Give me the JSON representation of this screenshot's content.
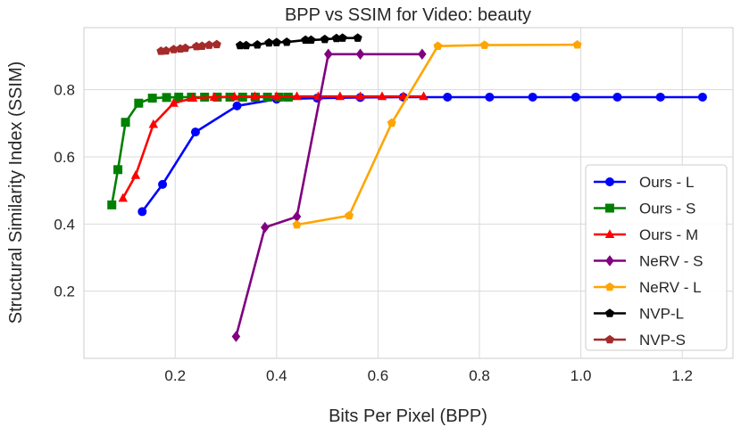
{
  "chart_data": {
    "type": "line",
    "title": "BPP vs SSIM for Video: beauty",
    "xlabel": "Bits Per Pixel (BPP)",
    "ylabel": "Structural Similarity Index (SSIM)",
    "xlim": [
      0.02,
      1.3
    ],
    "ylim": [
      0.0,
      0.985
    ],
    "xticks": [
      0.2,
      0.4,
      0.6,
      0.8,
      1.0,
      1.2
    ],
    "yticks": [
      0.2,
      0.4,
      0.6,
      0.8
    ],
    "xtick_labels": [
      "0.2",
      "0.4",
      "0.6",
      "0.8",
      "1.0",
      "1.2"
    ],
    "ytick_labels": [
      "0.2",
      "0.4",
      "0.6",
      "0.8"
    ],
    "grid": true,
    "legend_position": "right",
    "series": [
      {
        "name": "Ours - L",
        "color": "#0000ff",
        "marker": "circle",
        "x": [
          0.135,
          0.175,
          0.24,
          0.322,
          0.4,
          0.48,
          0.565,
          0.65,
          0.737,
          0.82,
          0.905,
          0.99,
          1.072,
          1.157,
          1.24
        ],
        "y": [
          0.437,
          0.518,
          0.674,
          0.752,
          0.772,
          0.775,
          0.777,
          0.778,
          0.778,
          0.778,
          0.778,
          0.778,
          0.778,
          0.778,
          0.778
        ]
      },
      {
        "name": "Ours - S",
        "color": "#008000",
        "marker": "square",
        "x": [
          0.075,
          0.087,
          0.102,
          0.128,
          0.155,
          0.183,
          0.207,
          0.232,
          0.258,
          0.283,
          0.308,
          0.333,
          0.358,
          0.382,
          0.405,
          0.423
        ],
        "y": [
          0.457,
          0.562,
          0.703,
          0.76,
          0.775,
          0.777,
          0.778,
          0.778,
          0.778,
          0.778,
          0.778,
          0.778,
          0.778,
          0.778,
          0.778,
          0.778
        ]
      },
      {
        "name": "Ours - M",
        "color": "#ff0000",
        "marker": "triangle",
        "x": [
          0.097,
          0.122,
          0.157,
          0.197,
          0.235,
          0.277,
          0.317,
          0.357,
          0.4,
          0.44,
          0.482,
          0.525,
          0.565,
          0.608,
          0.65,
          0.69
        ],
        "y": [
          0.477,
          0.545,
          0.697,
          0.76,
          0.775,
          0.778,
          0.779,
          0.78,
          0.78,
          0.78,
          0.78,
          0.78,
          0.78,
          0.78,
          0.78,
          0.78
        ]
      },
      {
        "name": "NeRV - S",
        "color": "#800080",
        "marker": "diamond",
        "x": [
          0.32,
          0.377,
          0.44,
          0.502,
          0.565,
          0.687
        ],
        "y": [
          0.065,
          0.39,
          0.422,
          0.906,
          0.906,
          0.906
        ]
      },
      {
        "name": "NeRV - L",
        "color": "#ffa500",
        "marker": "pentagon",
        "x": [
          0.44,
          0.543,
          0.627,
          0.718,
          0.81,
          0.993
        ],
        "y": [
          0.398,
          0.425,
          0.701,
          0.93,
          0.933,
          0.934
        ]
      },
      {
        "name": "NVP-L",
        "color": "#000000",
        "marker": "pentagon",
        "x": [
          0.328,
          0.34,
          0.362,
          0.385,
          0.4,
          0.42,
          0.457,
          0.468,
          0.495,
          0.518,
          0.53,
          0.56
        ],
        "y": [
          0.932,
          0.932,
          0.934,
          0.94,
          0.941,
          0.942,
          0.948,
          0.948,
          0.95,
          0.953,
          0.954,
          0.954
        ]
      },
      {
        "name": "NVP-S",
        "color": "#a52a2a",
        "marker": "pentagon",
        "x": [
          0.172,
          0.182,
          0.197,
          0.21,
          0.22,
          0.242,
          0.253,
          0.267,
          0.282
        ],
        "y": [
          0.915,
          0.916,
          0.92,
          0.922,
          0.924,
          0.929,
          0.93,
          0.933,
          0.935
        ]
      }
    ]
  }
}
